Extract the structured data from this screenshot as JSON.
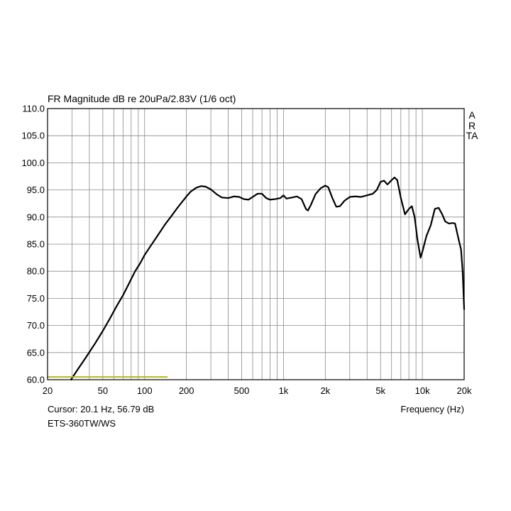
{
  "chart_data": {
    "type": "line",
    "title": "FR Magnitude dB re 20uPa/2.83V (1/6 oct)",
    "xlabel": "Frequency (Hz)",
    "ylabel": "",
    "xscale": "log",
    "xlim": [
      20,
      20000
    ],
    "ylim": [
      60,
      110
    ],
    "grid": true,
    "y_ticks": [
      "110.0",
      "105.0",
      "100.0",
      "95.0",
      "90.0",
      "85.0",
      "80.0",
      "75.0",
      "70.0",
      "65.0",
      "60.0"
    ],
    "x_ticks": [
      {
        "value": 20,
        "label": "20"
      },
      {
        "value": 50,
        "label": "50"
      },
      {
        "value": 100,
        "label": "100"
      },
      {
        "value": 200,
        "label": "200"
      },
      {
        "value": 500,
        "label": "500"
      },
      {
        "value": 1000,
        "label": "1k"
      },
      {
        "value": 2000,
        "label": "2k"
      },
      {
        "value": 5000,
        "label": "5k"
      },
      {
        "value": 10000,
        "label": "10k"
      },
      {
        "value": 20000,
        "label": "20k"
      }
    ],
    "series": [
      {
        "color": "#000000",
        "points": [
          [
            29.5,
            60.0
          ],
          [
            33,
            61.9
          ],
          [
            38,
            64.2
          ],
          [
            44,
            66.7
          ],
          [
            50,
            69.0
          ],
          [
            56,
            71.2
          ],
          [
            63,
            73.6
          ],
          [
            70,
            75.6
          ],
          [
            77,
            77.7
          ],
          [
            85,
            79.9
          ],
          [
            93,
            81.5
          ],
          [
            100,
            83.0
          ],
          [
            110,
            84.6
          ],
          [
            125,
            86.7
          ],
          [
            140,
            88.6
          ],
          [
            155,
            90.1
          ],
          [
            170,
            91.5
          ],
          [
            185,
            92.7
          ],
          [
            200,
            93.8
          ],
          [
            215,
            94.7
          ],
          [
            235,
            95.4
          ],
          [
            255,
            95.7
          ],
          [
            275,
            95.6
          ],
          [
            300,
            95.1
          ],
          [
            330,
            94.2
          ],
          [
            360,
            93.6
          ],
          [
            400,
            93.5
          ],
          [
            440,
            93.8
          ],
          [
            480,
            93.7
          ],
          [
            520,
            93.3
          ],
          [
            560,
            93.2
          ],
          [
            600,
            93.7
          ],
          [
            650,
            94.3
          ],
          [
            700,
            94.3
          ],
          [
            750,
            93.5
          ],
          [
            800,
            93.2
          ],
          [
            870,
            93.3
          ],
          [
            950,
            93.5
          ],
          [
            1000,
            94.0
          ],
          [
            1050,
            93.4
          ],
          [
            1150,
            93.6
          ],
          [
            1250,
            93.8
          ],
          [
            1350,
            93.3
          ],
          [
            1450,
            91.5
          ],
          [
            1500,
            91.2
          ],
          [
            1580,
            92.3
          ],
          [
            1700,
            94.2
          ],
          [
            1850,
            95.3
          ],
          [
            2000,
            95.8
          ],
          [
            2100,
            95.5
          ],
          [
            2250,
            93.5
          ],
          [
            2400,
            91.9
          ],
          [
            2550,
            92.0
          ],
          [
            2750,
            93.0
          ],
          [
            3000,
            93.7
          ],
          [
            3300,
            93.8
          ],
          [
            3600,
            93.7
          ],
          [
            4000,
            94.0
          ],
          [
            4400,
            94.3
          ],
          [
            4700,
            95.0
          ],
          [
            5000,
            96.5
          ],
          [
            5300,
            96.7
          ],
          [
            5600,
            96.0
          ],
          [
            6000,
            96.8
          ],
          [
            6300,
            97.3
          ],
          [
            6600,
            96.8
          ],
          [
            7000,
            93.5
          ],
          [
            7500,
            90.5
          ],
          [
            8000,
            91.5
          ],
          [
            8400,
            92.0
          ],
          [
            8800,
            90.0
          ],
          [
            9200,
            86.0
          ],
          [
            9700,
            82.5
          ],
          [
            10100,
            84.0
          ],
          [
            10700,
            86.5
          ],
          [
            11500,
            88.5
          ],
          [
            12300,
            91.5
          ],
          [
            13100,
            91.7
          ],
          [
            13900,
            90.5
          ],
          [
            14600,
            89.2
          ],
          [
            15500,
            88.8
          ],
          [
            16500,
            88.9
          ],
          [
            17200,
            88.8
          ],
          [
            18200,
            86.0
          ],
          [
            19000,
            84.0
          ],
          [
            19500,
            80.0
          ],
          [
            20000,
            73.0
          ]
        ]
      },
      {
        "color": "#b5b52a",
        "points": [
          [
            20,
            60.5
          ],
          [
            145,
            60.5
          ]
        ]
      }
    ]
  },
  "cursor_readout": "Cursor: 20.1 Hz, 56.79 dB",
  "device_label": "ETS-360TW/WS",
  "brand_mark": "ARTA"
}
